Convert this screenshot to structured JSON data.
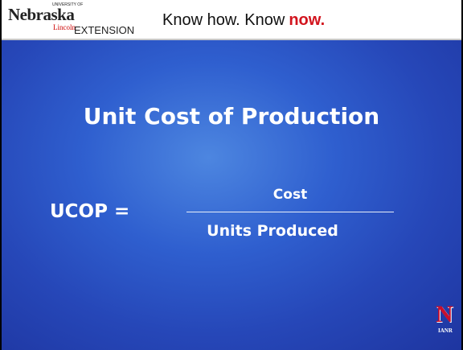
{
  "header": {
    "logo": {
      "small": "UNIVERSITY OF",
      "name": "Nebraska",
      "sub": "Lincoln",
      "unit": "EXTENSION"
    },
    "tagline": {
      "text": "Know how. Know",
      "emphasis": "now."
    }
  },
  "slide": {
    "title": "Unit Cost of Production",
    "formula": {
      "lhs": "UCOP =",
      "numerator": "Cost",
      "denominator": "Units Produced"
    }
  },
  "footer_logo": {
    "letter": "N",
    "text": "IANR"
  }
}
